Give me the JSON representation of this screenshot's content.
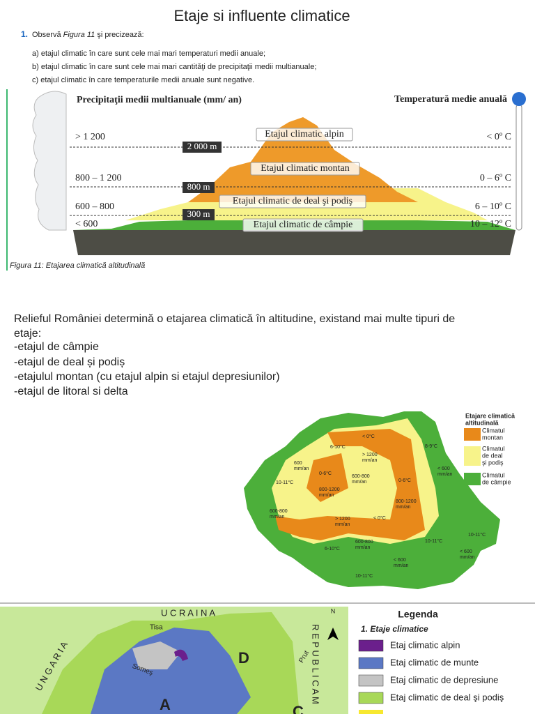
{
  "header": {
    "title": "Etaje si influente climatice"
  },
  "exercise": {
    "number": "1.",
    "intro": "Observă",
    "figure_ref": "Figura 11",
    "intro_end": "şi precizează:",
    "items": [
      "a) etajul climatic în care sunt cele mai mari temperaturi medii anuale;",
      "b) etajul climatic în care sunt cele mai mari cantităţi de precipitaţii medii multianuale;",
      "c) etajul climatic în care temperaturile medii anuale sunt negative."
    ]
  },
  "figure": {
    "left_title": "Precipitaţii medii multianuale (mm/ an)",
    "right_title": "Temperatură medie anuală",
    "precip": [
      "> 1 200",
      "800 – 1 200",
      "600 – 800",
      "< 600"
    ],
    "temps": [
      "< 0º C",
      "0 – 6º C",
      "6 – 10º C",
      "10 – 12º C"
    ],
    "altitudes": [
      "2 000 m",
      "800 m",
      "300 m"
    ],
    "zones": [
      "Etajul climatic alpin",
      "Etajul climatic montan",
      "Etajul climatic de deal şi podiş",
      "Etajul climatic de câmpie"
    ],
    "caption": "Figura 11: Etajarea climatică altitudinală"
  },
  "text": {
    "lines": [
      "Relieful României determină o etajarea climatică în altitudine, existand mai multe tipuri de",
      "etaje:",
      "-etajul de câmpie",
      "-etajul de deal și podiș",
      "-etajulul montan (cu etajul alpin si etajul depresiunilor)",
      "-etajul de litoral si delta"
    ]
  },
  "map1": {
    "legend_title": [
      "Etajare climatică",
      "altitudinală"
    ],
    "legend": [
      {
        "label": [
          "Climatul",
          "montan"
        ],
        "color": "#e8891a"
      },
      {
        "label": [
          "Climatul",
          "de deal",
          "şi podiş"
        ],
        "color": "#f7f38a"
      },
      {
        "label": [
          "Climatul",
          "de câmpie"
        ],
        "color": "#4caf3a"
      }
    ],
    "labels": [
      "< 0°C",
      "6-10°C",
      "8-9°C",
      "> 1200",
      "mm/an",
      "< 600",
      "mm/an",
      "600",
      "mm/an",
      "0-6°C",
      "0-6°C",
      "600-800",
      "mm/an",
      "10-11°C",
      "800-1200",
      "mm/an",
      "800-1200",
      "mm/an",
      "600-800",
      "mm/an",
      "> 1200",
      "mm/an",
      "< 0°C",
      "10-11°C",
      "6-10°C",
      "600-800",
      "mm/an",
      "10-11°C",
      "< 600",
      "mm/an",
      "< 600",
      "mm/an",
      "10-11°C"
    ]
  },
  "map2": {
    "countries": [
      "U C R A I N A",
      "U N G A R I A",
      "R E P U B L I C A  M"
    ],
    "regions": [
      "D",
      "A",
      "C"
    ],
    "rivers": [
      "Tisa",
      "Someş",
      "Prut"
    ],
    "north": "N",
    "legend_title": "Legenda",
    "legend_subtitle": "1. Etaje climatice",
    "legend": [
      {
        "label": "Etaj climatic alpin",
        "color": "#6b1f8c"
      },
      {
        "label": "Etaj climatic de munte",
        "color": "#5b78c4"
      },
      {
        "label": "Etaj climatic de depresiune",
        "color": "#c4c4c4"
      },
      {
        "label": "Etaj climatic de deal şi podiş",
        "color": "#a8d858"
      }
    ]
  }
}
